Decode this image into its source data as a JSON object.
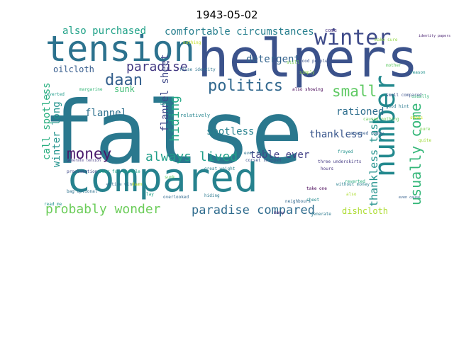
{
  "title": "1943-05-02",
  "words": [
    {
      "text": "false",
      "color": "#2a788e"
    },
    {
      "text": "helpers",
      "color": "#3b528b"
    },
    {
      "text": "tension",
      "color": "#2c728e"
    },
    {
      "text": "compared",
      "color": "#26828e"
    },
    {
      "text": "winter",
      "color": "#3e4a89"
    },
    {
      "text": "number",
      "color": "#23898e"
    },
    {
      "text": "politics",
      "color": "#31688e"
    },
    {
      "text": "daan",
      "color": "#35608d"
    },
    {
      "text": "paradise",
      "color": "#443a83"
    },
    {
      "text": "money",
      "color": "#48186a"
    },
    {
      "text": "always lived",
      "color": "#1f9e89"
    },
    {
      "text": "probably wonder",
      "color": "#6ccd5a"
    },
    {
      "text": "paradise compared",
      "color": "#2f6c8e"
    },
    {
      "text": "usually come",
      "color": "#35b779"
    },
    {
      "text": "small",
      "color": "#5ec962"
    },
    {
      "text": "hiding",
      "color": "#22a884"
    },
    {
      "text": "comfortable circumstances",
      "color": "#277f8e"
    },
    {
      "text": "also purchased",
      "color": "#1fa187"
    },
    {
      "text": "detergent",
      "color": "#33638d"
    },
    {
      "text": "flannel",
      "color": "#2d708e"
    },
    {
      "text": "flannel sheet",
      "color": "#3f4889"
    },
    {
      "text": "spotless",
      "color": "#26818e"
    },
    {
      "text": "call spotless",
      "color": "#29af7f"
    },
    {
      "text": "winter long",
      "color": "#20928c"
    },
    {
      "text": "oilcloth",
      "color": "#365c8d"
    },
    {
      "text": "sunk",
      "color": "#3dbc74"
    },
    {
      "text": "table ever",
      "color": "#424086"
    },
    {
      "text": "rationed",
      "color": "#2e6e8e"
    },
    {
      "text": "thankless",
      "color": "#39568c"
    },
    {
      "text": "thankless task",
      "color": "#21918c"
    },
    {
      "text": "dishcloth",
      "color": "#addc30"
    },
    {
      "text": "come",
      "color": "#46337f"
    },
    {
      "text": "relatively",
      "color": "#25858e"
    },
    {
      "text": "also showing",
      "color": "#440154"
    },
    {
      "text": "reverted",
      "color": "#1e9b8a"
    },
    {
      "text": "good people",
      "color": "#3b528b"
    },
    {
      "text": "generate",
      "color": "#2a788e"
    },
    {
      "text": "make sure",
      "color": "#90d743"
    },
    {
      "text": "nothing",
      "color": "#c2df23"
    },
    {
      "text": "false identity",
      "color": "#2c728e"
    },
    {
      "text": "bad",
      "color": "#1f9a8a"
    },
    {
      "text": "many",
      "color": "#482878"
    },
    {
      "text": "still",
      "color": "#7ad151"
    },
    {
      "text": "identity papers",
      "color": "#481f70"
    },
    {
      "text": "smell compared",
      "color": "#3b528b"
    },
    {
      "text": "good hint",
      "color": "#2a788e"
    },
    {
      "text": "fear for example",
      "color": "#1fa187"
    },
    {
      "text": "three underskirts",
      "color": "#443a83"
    },
    {
      "text": "usually",
      "color": "#35b779"
    },
    {
      "text": "great weight",
      "color": "#26828e"
    },
    {
      "text": "shoes",
      "color": "#d8e219"
    },
    {
      "text": "sunk",
      "color": "#5ec962"
    },
    {
      "text": "neighbours",
      "color": "#31688e"
    },
    {
      "text": "quite",
      "color": "#a0da39"
    },
    {
      "text": "proclamation",
      "color": "#3e4a89"
    },
    {
      "text": "bag optional",
      "color": "#2d708e"
    },
    {
      "text": "read me",
      "color": "#20928c"
    },
    {
      "text": "snapped today",
      "color": "#365c8d"
    },
    {
      "text": "caused nothing",
      "color": "#6ccd5a"
    },
    {
      "text": "reverted",
      "color": "#29af7f"
    },
    {
      "text": "without money",
      "color": "#277f8e"
    },
    {
      "text": "take one",
      "color": "#440154"
    },
    {
      "text": "hours",
      "color": "#46337f"
    },
    {
      "text": "lay",
      "color": "#1fa187"
    },
    {
      "text": "entire winter",
      "color": "#2f6c8e"
    },
    {
      "text": "even cause",
      "color": "#35608d"
    },
    {
      "text": "overlooked",
      "color": "#31688e"
    },
    {
      "text": "simply",
      "color": "#90d743"
    },
    {
      "text": "frayed",
      "color": "#20928c"
    },
    {
      "text": "generate tension",
      "color": "#443a83"
    },
    {
      "text": "corset snapped",
      "color": "#3b528b"
    },
    {
      "text": "daan",
      "color": "#c2df23"
    },
    {
      "text": "margarine",
      "color": "#35b779"
    },
    {
      "text": "ever huge",
      "color": "#2c728e"
    },
    {
      "text": "also",
      "color": "#addc30"
    },
    {
      "text": "hiding",
      "color": "#2a788e"
    },
    {
      "text": "mother",
      "color": "#5ec962"
    },
    {
      "text": "reason",
      "color": "#21918c"
    },
    {
      "text": "pure",
      "color": "#7ad151"
    },
    {
      "text": "sheet",
      "color": "#23898e"
    }
  ]
}
